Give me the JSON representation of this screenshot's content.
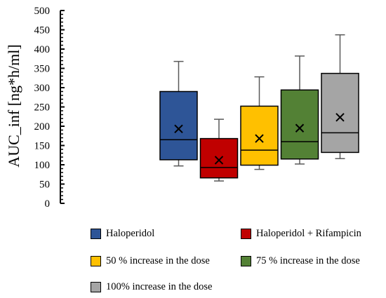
{
  "chart_data": {
    "type": "box",
    "ylabel": "AUC_inf [ng*h/ml]",
    "ylim": [
      0,
      500
    ],
    "yticks": [
      "0",
      "50",
      "100",
      "150",
      "200",
      "250",
      "300",
      "350",
      "400",
      "450",
      "500"
    ],
    "minor_ticks_per_major": 4,
    "grid": false,
    "legend_placement": "bottom, two columns",
    "series": [
      {
        "name": "Haloperidol",
        "color": "#2E5597",
        "min": 97,
        "q1": 113,
        "median": 165,
        "q3": 290,
        "max": 368,
        "mean": 193
      },
      {
        "name": "Haloperidol + Rifampicin",
        "color": "#C00000",
        "min": 58,
        "q1": 66,
        "median": 93,
        "q3": 168,
        "max": 218,
        "mean": 112
      },
      {
        "name": "50 % increase in the dose",
        "color": "#FFC000",
        "min": 88,
        "q1": 99,
        "median": 138,
        "q3": 252,
        "max": 328,
        "mean": 168
      },
      {
        "name": "75 % increase in the dose",
        "color": "#538135",
        "min": 102,
        "q1": 115,
        "median": 160,
        "q3": 294,
        "max": 382,
        "mean": 195
      },
      {
        "name": "100% increase in the dose",
        "color": "#A5A5A5",
        "min": 116,
        "q1": 132,
        "median": 183,
        "q3": 337,
        "max": 437,
        "mean": 223
      }
    ]
  }
}
